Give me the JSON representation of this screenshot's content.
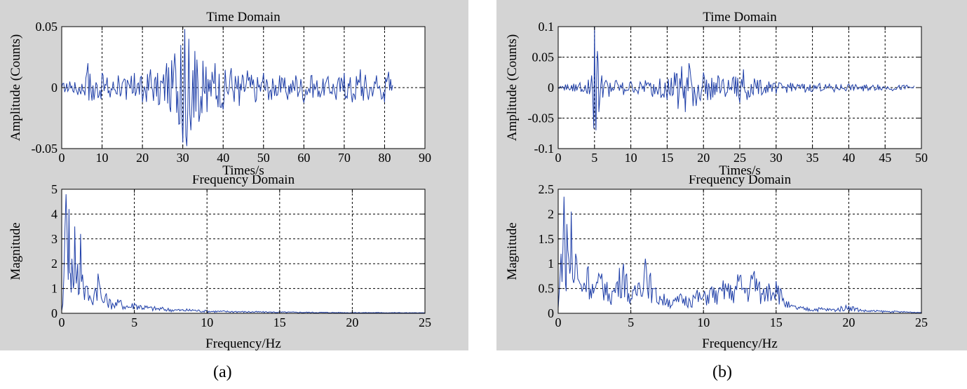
{
  "captions": {
    "a": "(a)",
    "b": "(b)"
  },
  "chart_data": [
    {
      "id": "a-time",
      "type": "line",
      "title": "Time Domain",
      "xlabel": "Times/s",
      "ylabel": "Amplitude (Counts)",
      "xlim": [
        0,
        90
      ],
      "ylim": [
        -0.05,
        0.05
      ],
      "xticks": [
        0,
        10,
        20,
        30,
        40,
        50,
        60,
        70,
        80,
        90
      ],
      "yticks": [
        -0.05,
        0,
        0.05
      ],
      "ytick_labels": [
        "-0.05",
        "0",
        "0.05"
      ],
      "grid": true,
      "color": "#1f3fa8",
      "series": [
        {
          "x": [
            0,
            2,
            4,
            6,
            6.5,
            8,
            10,
            12,
            14,
            16,
            18,
            20,
            22,
            24,
            26,
            27,
            28,
            29,
            29.5,
            30,
            30.5,
            31,
            31.5,
            32,
            33,
            34,
            35,
            36,
            38,
            40,
            42,
            44,
            46,
            48,
            50,
            52,
            54,
            56,
            58,
            60,
            62,
            64,
            66,
            68,
            70,
            72,
            74,
            76,
            78,
            80,
            81,
            82
          ],
          "y": [
            0,
            0.005,
            -0.006,
            0.008,
            0.02,
            -0.01,
            0.012,
            -0.008,
            0.01,
            -0.01,
            0.012,
            -0.012,
            0.015,
            -0.014,
            0.02,
            -0.02,
            0.028,
            -0.03,
            0.035,
            -0.045,
            0.048,
            -0.048,
            0.04,
            -0.035,
            0.03,
            -0.028,
            0.022,
            -0.02,
            0.02,
            -0.018,
            0.016,
            -0.015,
            0.014,
            -0.012,
            0.012,
            -0.01,
            0.01,
            -0.01,
            0.01,
            -0.012,
            0.01,
            -0.008,
            0.009,
            -0.01,
            0.012,
            -0.012,
            0.015,
            -0.01,
            0.01,
            -0.012,
            0.013,
            0.002
          ]
        }
      ]
    },
    {
      "id": "a-freq",
      "type": "line",
      "title": "Frequency Domain",
      "xlabel": "Frequency/Hz",
      "ylabel": "Magnitude",
      "xlim": [
        0,
        25
      ],
      "ylim": [
        0,
        5
      ],
      "xticks": [
        0,
        5,
        10,
        15,
        20,
        25
      ],
      "yticks": [
        0,
        1,
        2,
        3,
        4,
        5
      ],
      "grid": true,
      "color": "#1f3fa8",
      "series": [
        {
          "x": [
            0,
            0.15,
            0.3,
            0.4,
            0.5,
            0.6,
            0.7,
            0.8,
            0.9,
            1.0,
            1.1,
            1.2,
            1.3,
            1.5,
            1.7,
            2.0,
            2.3,
            2.5,
            2.8,
            3.0,
            3.5,
            4.0,
            4.5,
            5.0,
            6.0,
            7.0,
            8.0,
            9.0,
            10.0,
            12.0,
            14.0,
            16.0,
            18.0,
            20.0,
            22.0,
            25.0
          ],
          "y": [
            0.1,
            1.5,
            4.8,
            2.5,
            4.2,
            1.6,
            2.2,
            1.0,
            3.5,
            1.2,
            2.0,
            0.8,
            3.2,
            1.0,
            1.1,
            0.6,
            1.0,
            1.6,
            0.5,
            0.7,
            0.4,
            0.5,
            0.3,
            0.4,
            0.25,
            0.2,
            0.15,
            0.15,
            0.1,
            0.08,
            0.06,
            0.05,
            0.04,
            0.03,
            0.03,
            0.02
          ]
        }
      ]
    },
    {
      "id": "b-time",
      "type": "line",
      "title": "Time Domain",
      "xlabel": "Times/s",
      "ylabel": "Amplitude (Counts)",
      "xlim": [
        0,
        50
      ],
      "ylim": [
        -0.1,
        0.1
      ],
      "xticks": [
        0,
        5,
        10,
        15,
        20,
        25,
        30,
        35,
        40,
        45,
        50
      ],
      "yticks": [
        -0.1,
        -0.05,
        0,
        0.05,
        0.1
      ],
      "ytick_labels": [
        "-0.1",
        "-0.05",
        "0",
        "0.05",
        "0.1"
      ],
      "grid": true,
      "color": "#1f3fa8",
      "series": [
        {
          "x": [
            0,
            1,
            2,
            3,
            4,
            4.6,
            4.8,
            5.0,
            5.2,
            5.4,
            5.6,
            6.0,
            7,
            8,
            9,
            10,
            11,
            12,
            13,
            14,
            15,
            16,
            16.5,
            17,
            17.5,
            18,
            19,
            20,
            21,
            22,
            23,
            24,
            25,
            25.5,
            26,
            27,
            28,
            29,
            30,
            32,
            34,
            36,
            38,
            40,
            42,
            44,
            46,
            48,
            49
          ],
          "y": [
            0,
            0.005,
            -0.006,
            0.008,
            -0.01,
            0.02,
            -0.03,
            0.1,
            -0.07,
            0.06,
            -0.04,
            0.02,
            -0.015,
            0.012,
            -0.012,
            0.01,
            -0.01,
            0.012,
            -0.015,
            0.015,
            -0.02,
            0.025,
            -0.035,
            0.035,
            -0.04,
            0.04,
            -0.03,
            0.025,
            -0.02,
            0.02,
            -0.015,
            0.015,
            -0.025,
            0.03,
            -0.02,
            0.015,
            -0.012,
            0.01,
            -0.01,
            0.008,
            -0.008,
            0.007,
            -0.007,
            0.006,
            -0.006,
            0.005,
            -0.005,
            0.004,
            0.003
          ]
        }
      ]
    },
    {
      "id": "b-freq",
      "type": "line",
      "title": "Frequency Domain",
      "xlabel": "Frequency/Hz",
      "ylabel": "Magnitude",
      "xlim": [
        0,
        25
      ],
      "ylim": [
        0,
        2.5
      ],
      "xticks": [
        0,
        5,
        10,
        15,
        20,
        25
      ],
      "yticks": [
        0,
        0.5,
        1,
        1.5,
        2,
        2.5
      ],
      "ytick_labels": [
        "0",
        "0.5",
        "1",
        "1.5",
        "2",
        "2.5"
      ],
      "grid": true,
      "color": "#1f3fa8",
      "series": [
        {
          "x": [
            0,
            0.2,
            0.4,
            0.5,
            0.6,
            0.8,
            0.9,
            1.0,
            1.2,
            1.5,
            2.0,
            2.5,
            3.0,
            3.5,
            4.0,
            4.5,
            5.0,
            5.5,
            6.0,
            6.5,
            7.0,
            7.5,
            8.0,
            8.5,
            9.0,
            9.5,
            10.0,
            10.5,
            11.0,
            11.5,
            12.0,
            12.5,
            13.0,
            13.5,
            14.0,
            14.5,
            15.0,
            15.5,
            16.0,
            17.0,
            18.0,
            19.0,
            20.0,
            21.0,
            22.0,
            23.0,
            24.0,
            25.0
          ],
          "y": [
            0.1,
            1.2,
            2.35,
            0.6,
            1.8,
            0.8,
            2.05,
            0.7,
            1.2,
            0.6,
            0.9,
            0.5,
            0.8,
            0.4,
            0.6,
            1.0,
            0.3,
            0.6,
            1.1,
            0.5,
            0.35,
            0.3,
            0.25,
            0.35,
            0.3,
            0.4,
            0.35,
            0.5,
            0.4,
            0.6,
            0.45,
            0.75,
            0.5,
            0.85,
            0.4,
            0.6,
            0.65,
            0.3,
            0.15,
            0.1,
            0.1,
            0.08,
            0.15,
            0.06,
            0.05,
            0.04,
            0.03,
            0.02
          ]
        }
      ]
    }
  ]
}
